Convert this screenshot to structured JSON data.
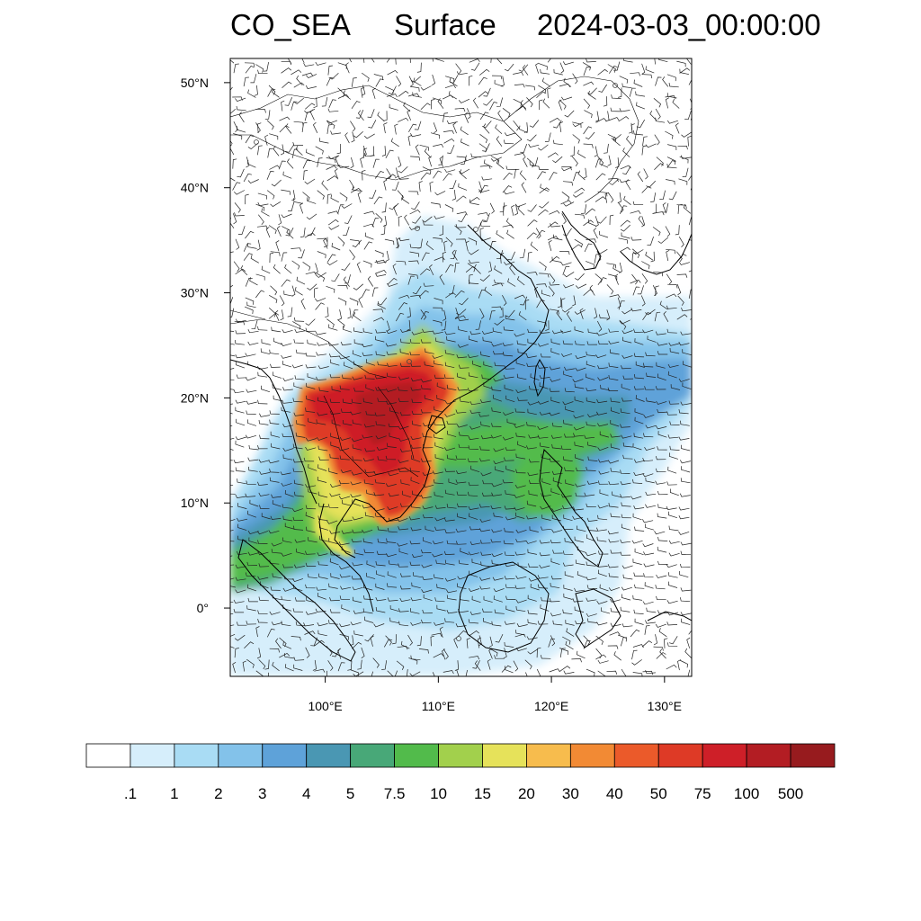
{
  "title": {
    "variable": "CO_SEA",
    "level": "Surface",
    "time": "2024-03-03_00:00:00"
  },
  "map": {
    "lon_range": [
      91.6,
      132.4
    ],
    "lat_range": [
      -6.5,
      52.3
    ],
    "lat_ticks": [
      {
        "value": 50,
        "label": "50°N"
      },
      {
        "value": 40,
        "label": "40°N"
      },
      {
        "value": 30,
        "label": "30°N"
      },
      {
        "value": 20,
        "label": "20°N"
      },
      {
        "value": 10,
        "label": "10°N"
      },
      {
        "value": 0,
        "label": "0°"
      }
    ],
    "lon_ticks": [
      {
        "value": 100,
        "label": "100°E"
      },
      {
        "value": 110,
        "label": "110°E"
      },
      {
        "value": 120,
        "label": "120°E"
      },
      {
        "value": 130,
        "label": "130°E"
      }
    ]
  },
  "colorbar": {
    "colors": [
      "#ffffff",
      "#d6eefb",
      "#a9dcf4",
      "#83c2ea",
      "#5ea2d9",
      "#4a97b3",
      "#48a878",
      "#52bb4b",
      "#a2d04c",
      "#e6e25a",
      "#f7bc4d",
      "#f28a34",
      "#eb5a2a",
      "#de3a26",
      "#ce1f28",
      "#b31d23",
      "#971b1e"
    ],
    "labels": [
      ".1",
      "1",
      "2",
      "3",
      "4",
      "5",
      "7.5",
      "10",
      "15",
      "20",
      "30",
      "40",
      "50",
      "75",
      "100",
      "500"
    ]
  }
}
